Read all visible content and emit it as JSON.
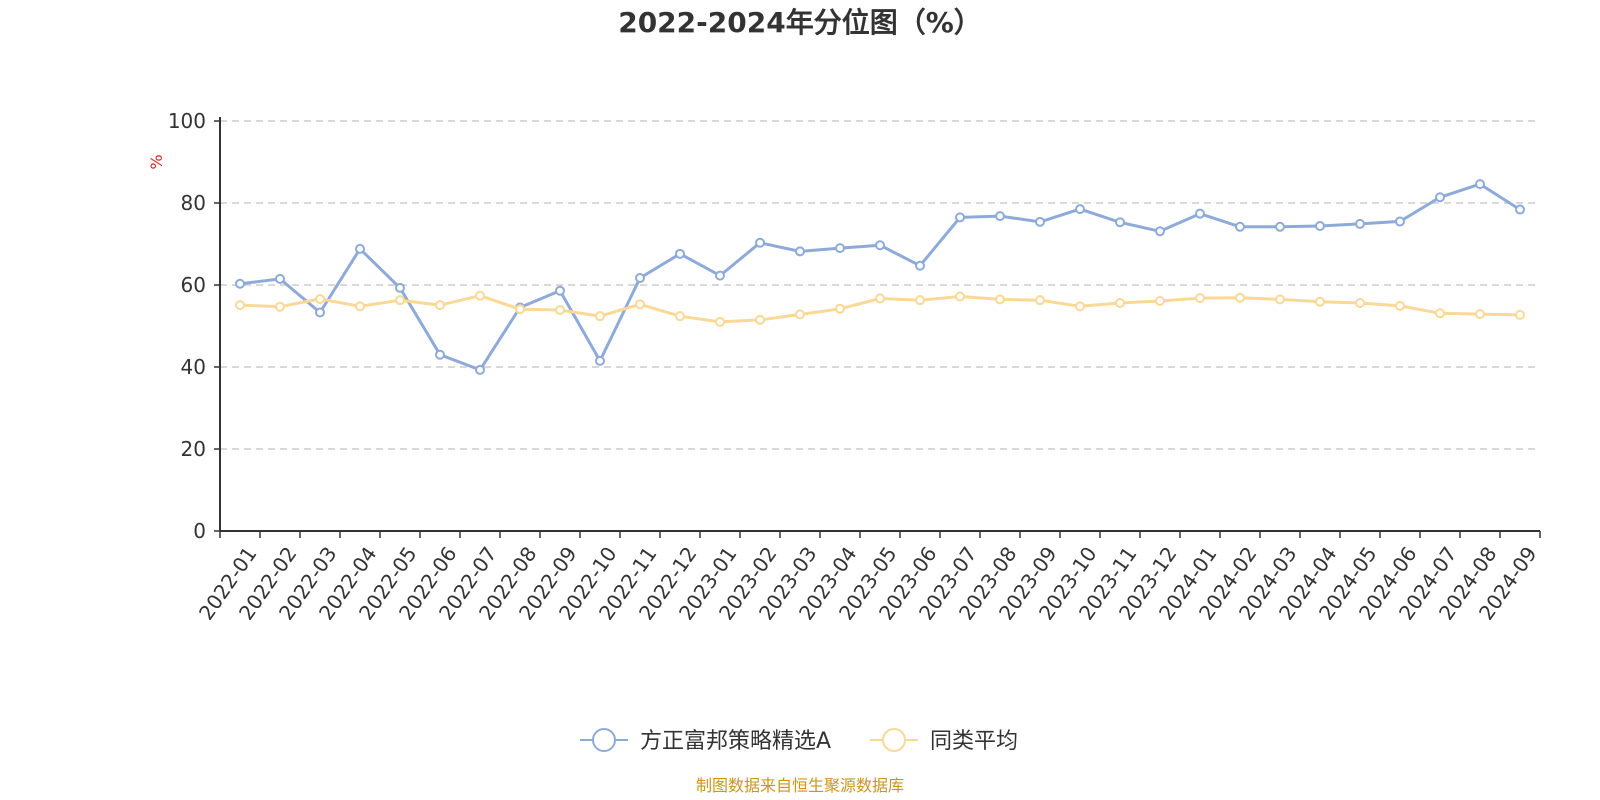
{
  "chart_data": {
    "type": "line",
    "title": "2022-2024年分位图（%）",
    "ylabel": "%",
    "ylim": [
      0,
      100
    ],
    "yticks": [
      0,
      20,
      40,
      60,
      80,
      100
    ],
    "grid": "horizontal-dashed",
    "legend_position": "bottom-center",
    "categories": [
      "2022-01",
      "2022-02",
      "2022-03",
      "2022-04",
      "2022-05",
      "2022-06",
      "2022-07",
      "2022-08",
      "2022-09",
      "2022-10",
      "2022-11",
      "2022-12",
      "2023-01",
      "2023-02",
      "2023-03",
      "2023-04",
      "2023-05",
      "2023-06",
      "2023-07",
      "2023-08",
      "2023-09",
      "2023-10",
      "2023-11",
      "2023-12",
      "2024-01",
      "2024-02",
      "2024-03",
      "2024-04",
      "2024-05",
      "2024-06",
      "2024-07",
      "2024-08",
      "2024-09"
    ],
    "series": [
      {
        "name": "方正富邦策略精选A",
        "color": "#8eaad8",
        "values": [
          60.3,
          61.5,
          53.3,
          68.8,
          59.3,
          43.0,
          39.3,
          54.5,
          58.6,
          41.5,
          61.7,
          67.6,
          62.3,
          70.3,
          68.2,
          69.0,
          69.7,
          64.7,
          76.5,
          76.8,
          75.4,
          78.5,
          75.3,
          73.1,
          77.4,
          74.2,
          74.2,
          74.4,
          74.9,
          75.5,
          81.4,
          84.6,
          78.4
        ]
      },
      {
        "name": "同类平均",
        "color": "#fad896",
        "values": [
          55.1,
          54.7,
          56.6,
          54.8,
          56.3,
          55.1,
          57.4,
          54.1,
          53.9,
          52.4,
          55.3,
          52.4,
          51.0,
          51.5,
          52.8,
          54.2,
          56.7,
          56.3,
          57.2,
          56.5,
          56.3,
          54.8,
          55.6,
          56.1,
          56.8,
          56.9,
          56.5,
          55.9,
          55.6,
          54.9,
          53.1,
          52.9,
          52.7
        ]
      }
    ]
  },
  "footer": {
    "source": "制图数据来自恒生聚源数据库"
  }
}
